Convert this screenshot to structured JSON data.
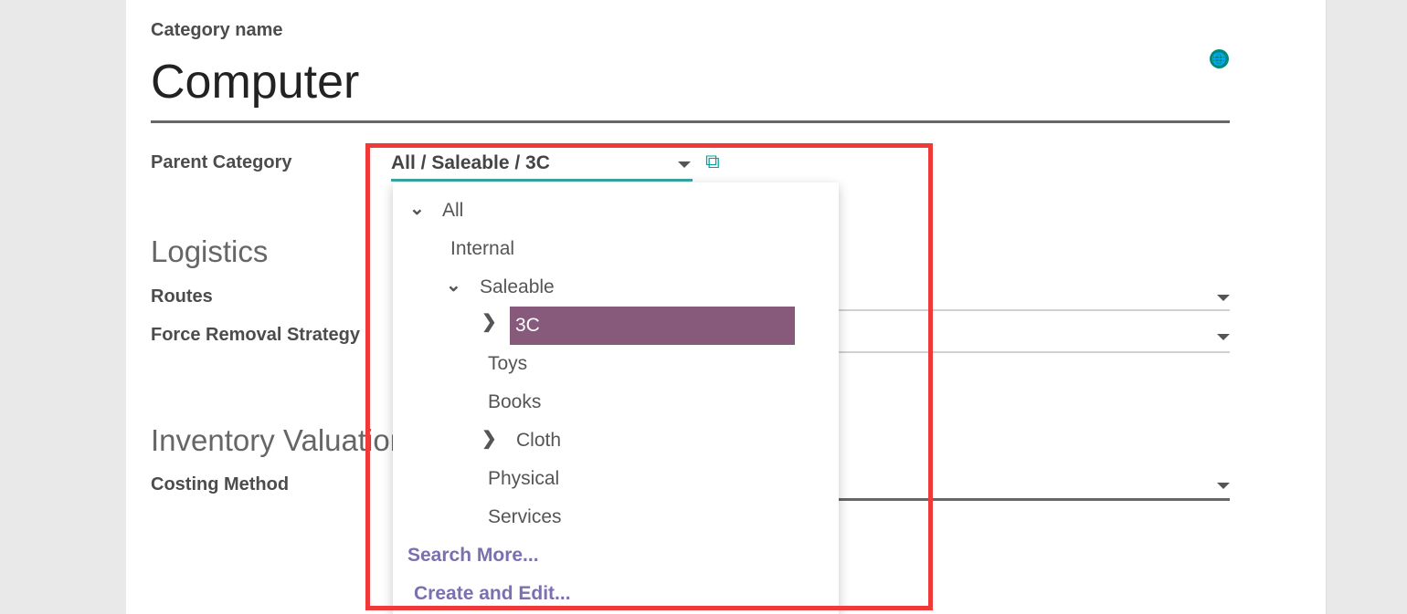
{
  "form": {
    "category_name_label": "Category name",
    "category_name_value": "Computer",
    "parent_category_label": "Parent Category",
    "parent_category_value": "All / Saleable / 3C",
    "logistics_heading": "Logistics",
    "routes_label": "Routes",
    "removal_label": "Force Removal Strategy",
    "valuation_heading": "Inventory Valuation",
    "costing_label": "Costing Method"
  },
  "dropdown": {
    "items": [
      {
        "label": "All",
        "expander": "chevron-down"
      },
      {
        "label": "Internal"
      },
      {
        "label": "Saleable",
        "expander": "chevron-down"
      },
      {
        "label": "3C",
        "expander": "chevron-right",
        "selected": true
      },
      {
        "label": "Toys"
      },
      {
        "label": "Books"
      },
      {
        "label": "Cloth",
        "expander": "chevron-right"
      },
      {
        "label": "Physical"
      },
      {
        "label": "Services"
      }
    ],
    "search_more": "Search More...",
    "create_edit": "Create and Edit..."
  },
  "colors": {
    "accent": "#00a09d",
    "selected": "#875a7b",
    "link": "#7c6fb0",
    "highlight_box": "#f03a3a"
  }
}
